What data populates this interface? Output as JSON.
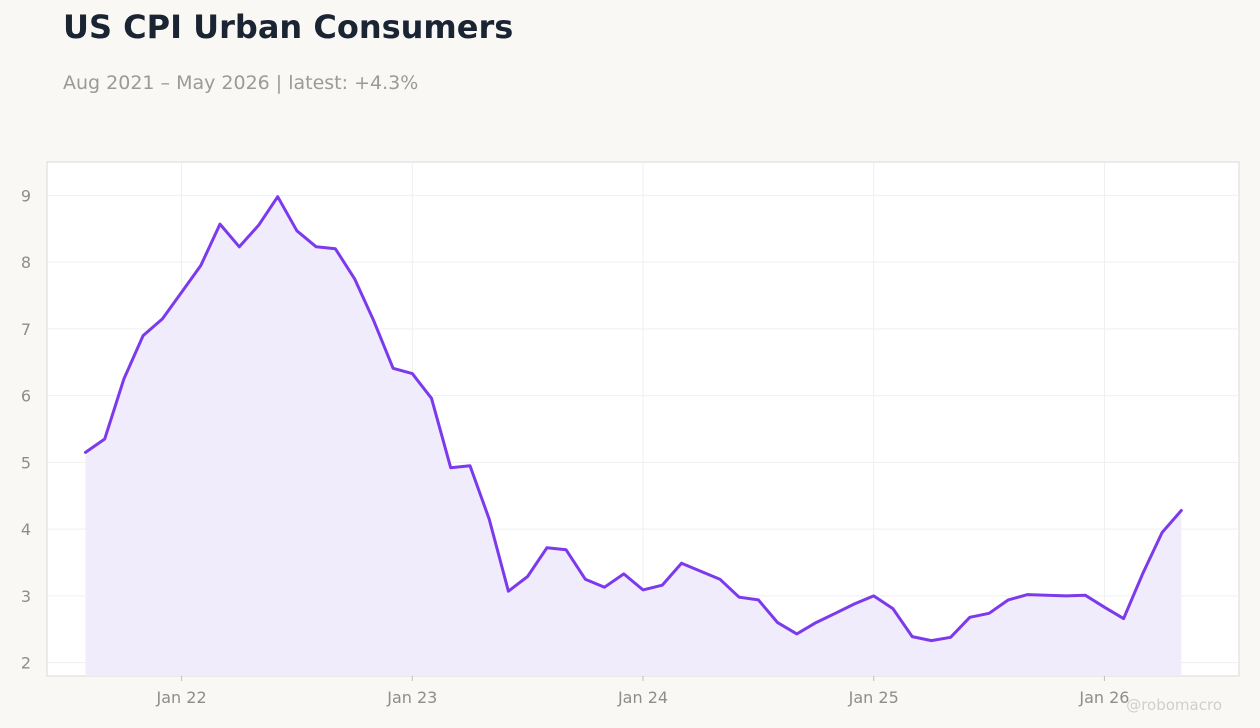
{
  "header": {
    "title": "US CPI Urban Consumers",
    "subtitle": "Aug 2021 – May 2026 | latest: +4.3%"
  },
  "watermark": "@robomacro",
  "colors": {
    "line": "#7c3aed",
    "fill": "#f1ecfb",
    "background": "#f9f8f5",
    "plot_background": "#ffffff",
    "grid": "#efefef"
  },
  "chart_data": {
    "type": "area",
    "title": "US CPI Urban Consumers",
    "subtitle": "Aug 2021 – May 2026 | latest: +4.3%",
    "xlabel": "",
    "ylabel": "",
    "ylim": [
      1.8,
      9.5
    ],
    "xlim": [
      "2021-06",
      "2026-08"
    ],
    "grid": true,
    "legend": "none",
    "y_ticks": [
      2,
      3,
      4,
      5,
      6,
      7,
      8,
      9
    ],
    "x_ticks": [
      {
        "date": "2022-01",
        "label": "Jan 22"
      },
      {
        "date": "2023-01",
        "label": "Jan 23"
      },
      {
        "date": "2024-01",
        "label": "Jan 24"
      },
      {
        "date": "2025-01",
        "label": "Jan 25"
      },
      {
        "date": "2026-01",
        "label": "Jan 26"
      }
    ],
    "x": [
      "2021-08",
      "2021-09",
      "2021-10",
      "2021-11",
      "2021-12",
      "2022-01",
      "2022-02",
      "2022-03",
      "2022-04",
      "2022-05",
      "2022-06",
      "2022-07",
      "2022-08",
      "2022-09",
      "2022-10",
      "2022-11",
      "2022-12",
      "2023-01",
      "2023-02",
      "2023-03",
      "2023-04",
      "2023-05",
      "2023-06",
      "2023-07",
      "2023-08",
      "2023-09",
      "2023-10",
      "2023-11",
      "2023-12",
      "2024-01",
      "2024-02",
      "2024-03",
      "2024-04",
      "2024-05",
      "2024-06",
      "2024-07",
      "2024-08",
      "2024-09",
      "2024-10",
      "2024-11",
      "2024-12",
      "2025-01",
      "2025-02",
      "2025-03",
      "2025-04",
      "2025-05",
      "2025-06",
      "2025-07",
      "2025-08",
      "2025-09",
      "2025-10",
      "2025-11",
      "2025-12",
      "2026-01",
      "2026-02",
      "2026-03",
      "2026-04",
      "2026-05"
    ],
    "values": [
      5.15,
      5.35,
      6.25,
      6.9,
      7.15,
      7.55,
      7.95,
      8.57,
      8.23,
      8.55,
      8.98,
      8.47,
      8.23,
      8.2,
      7.75,
      7.12,
      6.41,
      6.33,
      5.96,
      4.92,
      4.95,
      4.15,
      3.07,
      3.29,
      3.72,
      3.69,
      3.25,
      3.13,
      3.33,
      3.09,
      3.16,
      3.49,
      3.37,
      3.25,
      2.98,
      2.94,
      2.6,
      2.43,
      2.6,
      2.74,
      2.88,
      3.0,
      2.81,
      2.39,
      2.33,
      2.38,
      2.68,
      2.74,
      2.94,
      3.02,
      3.01,
      3.0,
      3.01,
      2.83,
      2.66,
      3.34,
      3.95,
      4.28
    ]
  }
}
